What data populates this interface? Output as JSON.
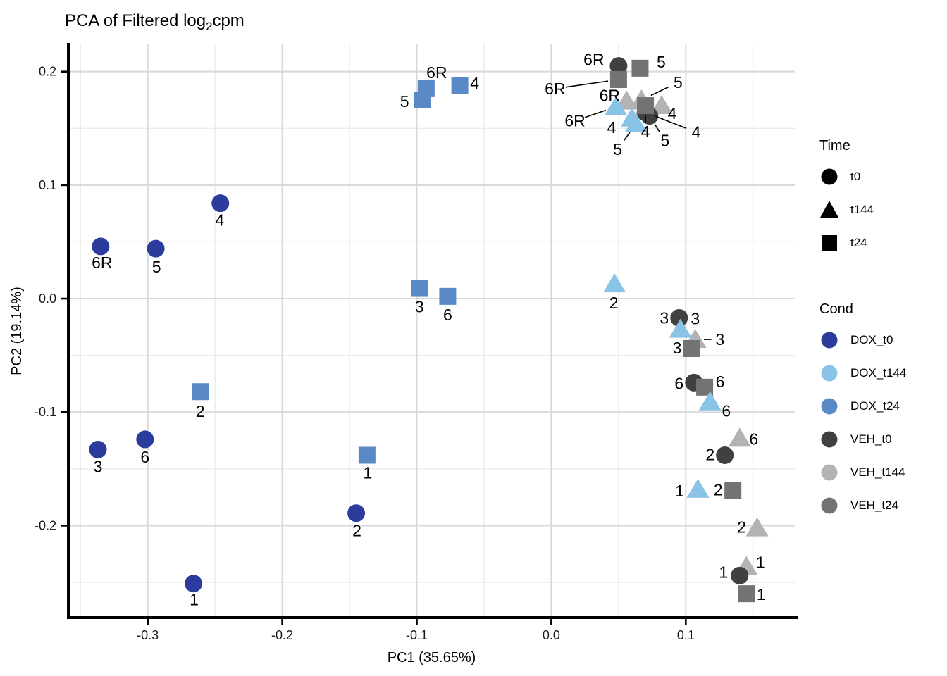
{
  "header": {
    "title_pre": "PCA of Filtered log",
    "title_sub": "2",
    "title_post": "cpm"
  },
  "chart_data": {
    "type": "scatter",
    "title": "PCA of Filtered log2cpm",
    "xlabel": "PC1 (35.65%)",
    "ylabel": "PC2 (19.14%)",
    "xlim": [
      -0.359,
      0.181
    ],
    "ylim": [
      -0.281,
      0.224
    ],
    "grid": {
      "major_color": "#d8d8d8",
      "minor_color": "#ebebeb"
    },
    "axis_color": "#000000",
    "label_color": "#000000",
    "x_ticks": [
      {
        "v": -0.3,
        "label": "-0.3"
      },
      {
        "v": -0.2,
        "label": "-0.2"
      },
      {
        "v": -0.1,
        "label": "-0.1"
      },
      {
        "v": 0.0,
        "label": "0.0"
      },
      {
        "v": 0.1,
        "label": "0.1"
      }
    ],
    "y_ticks": [
      {
        "v": 0.2,
        "label": "0.2"
      },
      {
        "v": 0.1,
        "label": "0.1"
      },
      {
        "v": 0.0,
        "label": "0.0"
      },
      {
        "v": -0.1,
        "label": "-0.1"
      },
      {
        "v": -0.2,
        "label": "-0.2"
      }
    ],
    "x_minor": [
      -0.35,
      -0.25,
      -0.15,
      -0.05,
      0.05,
      0.15
    ],
    "y_minor": [
      0.15,
      0.05,
      -0.05,
      -0.15,
      -0.25
    ],
    "shape_by_time": {
      "t0": "circle",
      "t24": "square",
      "t144": "triangle"
    },
    "draw_order": [
      "DOX_t0",
      "DOX_t24",
      "VEH_t144",
      "VEH_t0",
      "VEH_t24",
      "DOX_t144"
    ],
    "series": [
      {
        "name": "DOX_t0",
        "time": "t0",
        "shape": "circle",
        "color": "#2b3c9c",
        "points": [
          {
            "label": "6R",
            "x": -0.335,
            "y": 0.046,
            "dx": 2,
            "dy": 23
          },
          {
            "label": "5",
            "x": -0.294,
            "y": 0.044,
            "dx": 1,
            "dy": 26
          },
          {
            "label": "4",
            "x": -0.246,
            "y": 0.084,
            "dx": -1,
            "dy": 24
          },
          {
            "label": "3",
            "x": -0.337,
            "y": -0.133,
            "dx": 0,
            "dy": 24
          },
          {
            "label": "6",
            "x": -0.302,
            "y": -0.124,
            "dx": 0,
            "dy": 25
          },
          {
            "label": "2",
            "x": -0.145,
            "y": -0.189,
            "dx": 1,
            "dy": 25
          },
          {
            "label": "1",
            "x": -0.266,
            "y": -0.251,
            "dx": 1,
            "dy": 23
          }
        ]
      },
      {
        "name": "DOX_t24",
        "time": "t24",
        "shape": "square",
        "color": "#5a8ac6",
        "points": [
          {
            "label": "5",
            "x": -0.096,
            "y": 0.175,
            "dx": -25,
            "dy": 2
          },
          {
            "label": "6R",
            "x": -0.093,
            "y": 0.185,
            "dx": 15,
            "dy": -23
          },
          {
            "label": "4",
            "x": -0.068,
            "y": 0.188,
            "dx": 21,
            "dy": -3
          },
          {
            "label": "3",
            "x": -0.098,
            "y": 0.009,
            "dx": 0,
            "dy": 26
          },
          {
            "label": "6",
            "x": -0.077,
            "y": 0.002,
            "dx": 0,
            "dy": 26
          },
          {
            "label": "2",
            "x": -0.261,
            "y": -0.082,
            "dx": 0,
            "dy": 28
          },
          {
            "label": "1",
            "x": -0.137,
            "y": -0.138,
            "dx": 1,
            "dy": 25
          }
        ]
      },
      {
        "name": "VEH_t144",
        "time": "t144",
        "shape": "triangle",
        "color": "#b3b3b3",
        "points": [
          {
            "label": "6R",
            "x": 0.056,
            "y": 0.174,
            "dx": -24,
            "dy": -8
          },
          {
            "label": "5",
            "x": 0.067,
            "y": 0.175,
            "dx": 52,
            "dy": -25,
            "leader": true
          },
          {
            "label": "4",
            "x": 0.082,
            "y": 0.17,
            "dx": 15,
            "dy": 11
          },
          {
            "label": "3",
            "x": 0.107,
            "y": -0.036,
            "dx": 35,
            "dy": 0,
            "leader": true
          },
          {
            "label": "6",
            "x": 0.14,
            "y": -0.123,
            "dx": 20,
            "dy": 1
          },
          {
            "label": "2",
            "x": 0.153,
            "y": -0.202,
            "dx": -22,
            "dy": -1
          },
          {
            "label": "1",
            "x": 0.145,
            "y": -0.236,
            "dx": 20,
            "dy": -6
          }
        ]
      },
      {
        "name": "VEH_t0",
        "time": "t0",
        "shape": "circle",
        "color": "#404040",
        "points": [
          {
            "label": "6R",
            "x": 0.05,
            "y": 0.205,
            "dx": -35,
            "dy": -9
          },
          {
            "label": "4",
            "x": 0.07,
            "y": 0.164,
            "dx": 72,
            "dy": 28,
            "leader": true
          },
          {
            "label": "5",
            "x": 0.073,
            "y": 0.161,
            "dx": 22,
            "dy": 35,
            "leader": true
          },
          {
            "label": "3",
            "x": 0.095,
            "y": -0.017,
            "dx": -21,
            "dy": 0
          },
          {
            "label": "6",
            "x": 0.106,
            "y": -0.074,
            "dx": -21,
            "dy": 1
          },
          {
            "label": "2",
            "x": 0.129,
            "y": -0.138,
            "dx": -21,
            "dy": -1
          },
          {
            "label": "1",
            "x": 0.14,
            "y": -0.244,
            "dx": -23,
            "dy": -5
          }
        ]
      },
      {
        "name": "VEH_t24",
        "time": "t24",
        "shape": "square",
        "color": "#737373",
        "points": [
          {
            "label": "5",
            "x": 0.066,
            "y": 0.203,
            "dx": 30,
            "dy": -9
          },
          {
            "label": "6R",
            "x": 0.05,
            "y": 0.193,
            "dx": -90,
            "dy": 13,
            "leader": true
          },
          {
            "label": "4",
            "x": 0.07,
            "y": 0.17,
            "dx": 0,
            "dy": 37,
            "leader": true
          },
          {
            "label": "3",
            "x": 0.104,
            "y": -0.044,
            "dx": -20,
            "dy": -1
          },
          {
            "label": "6",
            "x": 0.114,
            "y": -0.078,
            "dx": 22,
            "dy": -8
          },
          {
            "label": "2",
            "x": 0.135,
            "y": -0.169,
            "dx": -21,
            "dy": -1
          },
          {
            "label": "1",
            "x": 0.145,
            "y": -0.26,
            "dx": 21,
            "dy": 1
          }
        ]
      },
      {
        "name": "DOX_t144",
        "time": "t144",
        "shape": "triangle",
        "color": "#89c4e6",
        "points": [
          {
            "label": "6R",
            "x": 0.048,
            "y": 0.169,
            "dx": -58,
            "dy": 20,
            "leader": true
          },
          {
            "label": "4",
            "x": 0.06,
            "y": 0.159,
            "dx": -29,
            "dy": 13
          },
          {
            "label": "5",
            "x": 0.063,
            "y": 0.154,
            "dx": -26,
            "dy": 36,
            "leader": true
          },
          {
            "label": "2",
            "x": 0.047,
            "y": 0.013,
            "dx": -1,
            "dy": 27
          },
          {
            "label": "3",
            "x": 0.096,
            "y": -0.027,
            "dx": 21,
            "dy": -15
          },
          {
            "label": "6",
            "x": 0.118,
            "y": -0.091,
            "dx": 23,
            "dy": 13
          },
          {
            "label": "1",
            "x": 0.109,
            "y": -0.168,
            "dx": -26,
            "dy": 2
          }
        ]
      }
    ]
  },
  "legend": {
    "time": {
      "title": "Time",
      "glyph_color": "#000000",
      "items": [
        {
          "shape": "circle",
          "label": "t0"
        },
        {
          "shape": "triangle",
          "label": "t144"
        },
        {
          "shape": "square",
          "label": "t24"
        }
      ]
    },
    "cond": {
      "title": "Cond",
      "items": [
        {
          "label": "DOX_t0",
          "color": "#2b3c9c"
        },
        {
          "label": "DOX_t144",
          "color": "#89c4e6"
        },
        {
          "label": "DOX_t24",
          "color": "#5a8ac6"
        },
        {
          "label": "VEH_t0",
          "color": "#404040"
        },
        {
          "label": "VEH_t144",
          "color": "#b3b3b3"
        },
        {
          "label": "VEH_t24",
          "color": "#737373"
        }
      ]
    }
  }
}
